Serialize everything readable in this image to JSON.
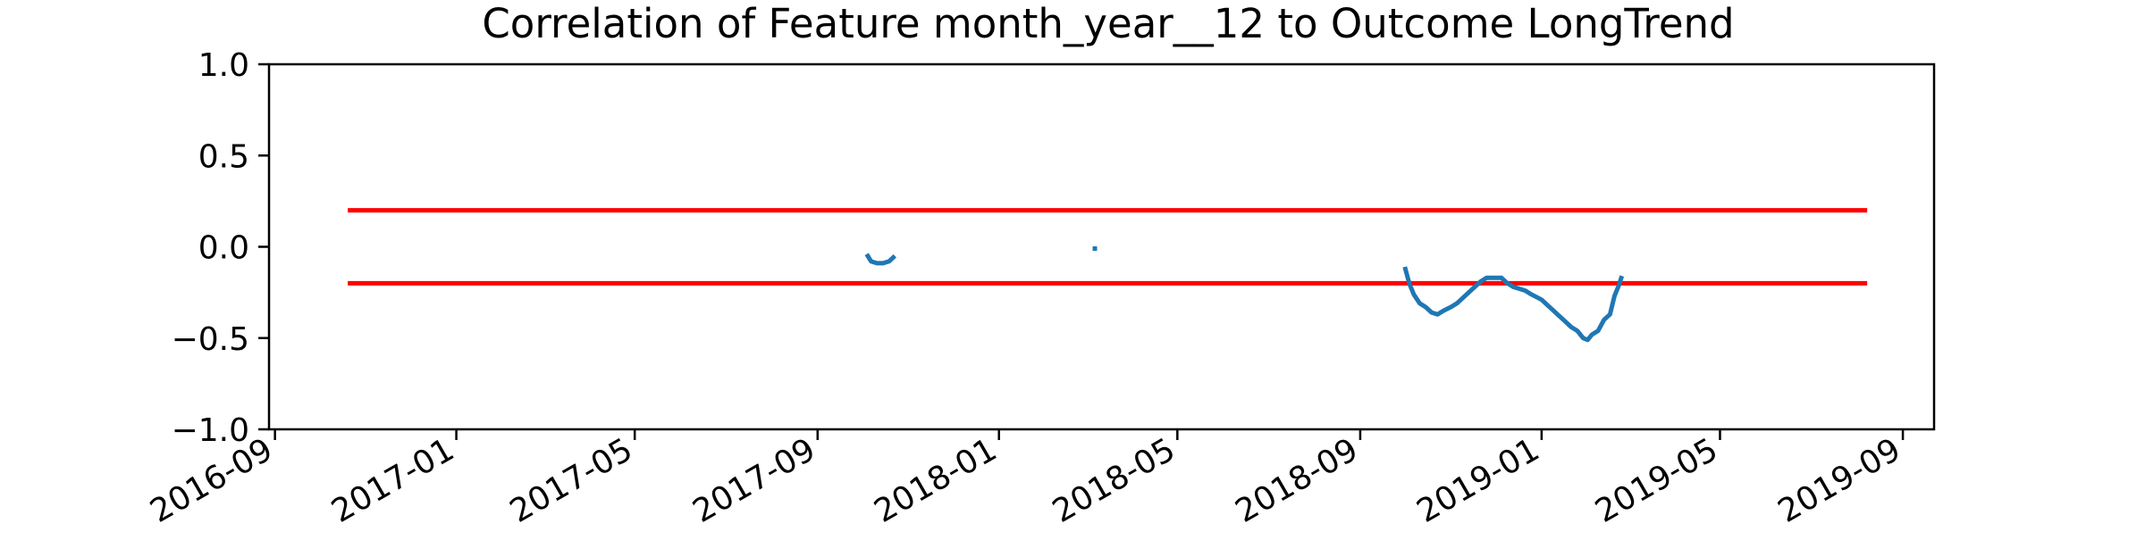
{
  "chart_data": {
    "type": "line",
    "title": "Correlation of Feature month_year__12 to Outcome LongTrend",
    "xlabel": "",
    "ylabel": "",
    "xlim": [
      "2016-08-28",
      "2019-09-22"
    ],
    "ylim": [
      -1.0,
      1.0
    ],
    "grid": false,
    "x_ticks": [
      "2016-09",
      "2017-01",
      "2017-05",
      "2017-09",
      "2018-01",
      "2018-05",
      "2018-09",
      "2019-01",
      "2019-05",
      "2019-09"
    ],
    "y_ticks": [
      "1.0",
      "0.5",
      "0.0",
      "−0.5",
      "−1.0"
    ],
    "thresholds": [
      {
        "y": 0.2,
        "x_start": "2016-10-20",
        "x_end": "2019-08-08",
        "color": "#ff0000"
      },
      {
        "y": -0.2,
        "x_start": "2016-10-20",
        "x_end": "2019-08-08",
        "color": "#ff0000"
      }
    ],
    "series": [
      {
        "color": "#1f77b4",
        "segments": [
          [
            [
              "2017-10-04",
              -0.04
            ],
            [
              "2017-10-07",
              -0.08
            ],
            [
              "2017-10-11",
              -0.09
            ],
            [
              "2017-10-15",
              -0.09
            ],
            [
              "2017-10-19",
              -0.08
            ],
            [
              "2017-10-23",
              -0.05
            ]
          ],
          [
            [
              "2018-03-05",
              -0.01
            ],
            [
              "2018-03-08",
              -0.01
            ]
          ],
          [
            [
              "2018-10-01",
              -0.11
            ],
            [
              "2018-10-04",
              -0.2
            ],
            [
              "2018-10-07",
              -0.26
            ],
            [
              "2018-10-11",
              -0.31
            ],
            [
              "2018-10-15",
              -0.33
            ],
            [
              "2018-10-19",
              -0.36
            ],
            [
              "2018-10-23",
              -0.37
            ],
            [
              "2018-10-27",
              -0.35
            ],
            [
              "2018-11-01",
              -0.33
            ],
            [
              "2018-11-05",
              -0.31
            ],
            [
              "2018-11-09",
              -0.28
            ],
            [
              "2018-11-13",
              -0.25
            ],
            [
              "2018-11-17",
              -0.22
            ],
            [
              "2018-11-21",
              -0.19
            ],
            [
              "2018-11-25",
              -0.17
            ],
            [
              "2018-12-01",
              -0.17
            ],
            [
              "2018-12-05",
              -0.17
            ],
            [
              "2018-12-09",
              -0.2
            ],
            [
              "2018-12-13",
              -0.22
            ],
            [
              "2018-12-17",
              -0.23
            ],
            [
              "2018-12-21",
              -0.24
            ],
            [
              "2018-12-25",
              -0.26
            ],
            [
              "2019-01-01",
              -0.29
            ],
            [
              "2019-01-05",
              -0.32
            ],
            [
              "2019-01-09",
              -0.35
            ],
            [
              "2019-01-13",
              -0.38
            ],
            [
              "2019-01-17",
              -0.41
            ],
            [
              "2019-01-21",
              -0.44
            ],
            [
              "2019-01-25",
              -0.46
            ],
            [
              "2019-01-29",
              -0.5
            ],
            [
              "2019-02-01",
              -0.51
            ],
            [
              "2019-02-04",
              -0.48
            ],
            [
              "2019-02-08",
              -0.46
            ],
            [
              "2019-02-12",
              -0.4
            ],
            [
              "2019-02-16",
              -0.37
            ],
            [
              "2019-02-19",
              -0.27
            ],
            [
              "2019-02-22",
              -0.21
            ],
            [
              "2019-02-24",
              -0.16
            ]
          ]
        ]
      }
    ]
  }
}
